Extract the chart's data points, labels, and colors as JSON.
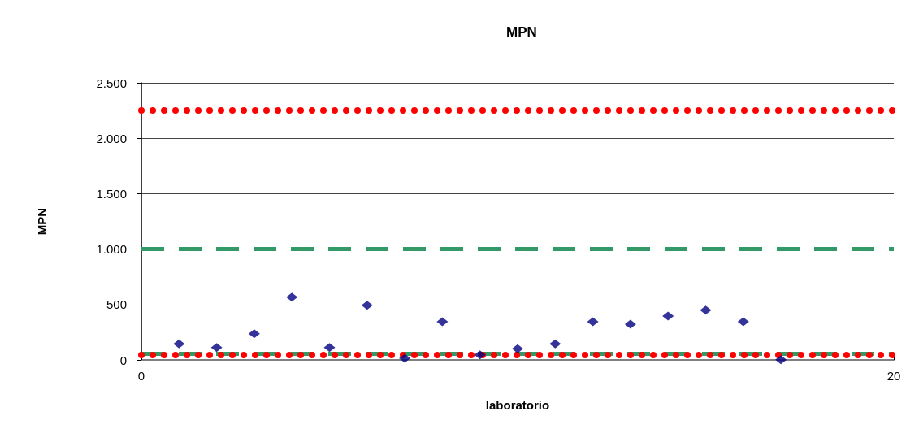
{
  "chart_data": {
    "type": "scatter",
    "title": "MPN",
    "xlabel": "laboratorio",
    "ylabel": "MPN",
    "x": [
      1,
      2,
      3,
      4,
      5,
      6,
      7,
      8,
      9,
      10,
      11,
      12,
      13,
      14,
      15,
      16,
      17
    ],
    "values": [
      145,
      112,
      237,
      567,
      112,
      493,
      15,
      345,
      46,
      100,
      144,
      345,
      323,
      396,
      449,
      345,
      2
    ],
    "color": "#000080",
    "marker": "diamond",
    "xlim": [
      0,
      20
    ],
    "xticks": [
      0,
      20
    ],
    "ylim": [
      0,
      2500
    ],
    "yticks": [
      0,
      {
        "value": 500,
        "label": "500"
      },
      {
        "value": 1000,
        "label": "1.000"
      },
      {
        "value": 1500,
        "label": "1.500"
      },
      {
        "value": 2000,
        "label": "2.000"
      },
      {
        "value": 2500,
        "label": "2.500"
      }
    ],
    "grid": "y",
    "ref_lines": [
      {
        "axis": "y",
        "value": 2250,
        "color": "#ff0000",
        "line_style": "dotted"
      },
      {
        "axis": "y",
        "value": 1000,
        "color": "#339966",
        "line_style": "dashed"
      },
      {
        "axis": "y",
        "value": 55,
        "color": "#339966",
        "line_style": "dashed"
      },
      {
        "axis": "y",
        "value": 45,
        "color": "#ff0000",
        "line_style": "dotted"
      }
    ]
  }
}
